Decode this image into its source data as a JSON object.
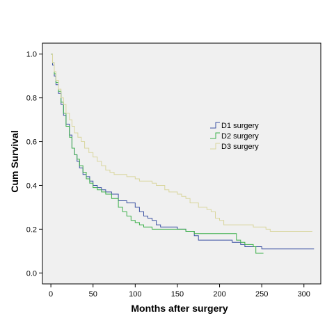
{
  "chart_data": {
    "type": "line",
    "xlabel": "Months after surgery",
    "ylabel": "Cum Survival",
    "xlim": [
      -10,
      320
    ],
    "ylim": [
      -0.05,
      1.05
    ],
    "x_ticks": [
      0,
      50,
      100,
      150,
      200,
      250,
      300
    ],
    "y_ticks": [
      0.0,
      0.2,
      0.4,
      0.6,
      0.8,
      1.0
    ],
    "x_tick_labels": [
      "0",
      "50",
      "100",
      "150",
      "200",
      "250",
      "300"
    ],
    "y_tick_labels": [
      "0.0",
      "0.2",
      "0.4",
      "0.6",
      "0.8",
      "1.0"
    ],
    "legend_position": "right",
    "series": [
      {
        "name": "D1 surgery",
        "color": "#3c52a3",
        "points": [
          [
            0,
            1.0
          ],
          [
            2,
            0.95
          ],
          [
            4,
            0.9
          ],
          [
            6,
            0.86
          ],
          [
            9,
            0.82
          ],
          [
            12,
            0.77
          ],
          [
            15,
            0.72
          ],
          [
            18,
            0.68
          ],
          [
            22,
            0.63
          ],
          [
            25,
            0.57
          ],
          [
            28,
            0.54
          ],
          [
            31,
            0.51
          ],
          [
            34,
            0.48
          ],
          [
            38,
            0.45
          ],
          [
            42,
            0.44
          ],
          [
            46,
            0.42
          ],
          [
            50,
            0.4
          ],
          [
            55,
            0.39
          ],
          [
            60,
            0.38
          ],
          [
            65,
            0.37
          ],
          [
            72,
            0.36
          ],
          [
            80,
            0.33
          ],
          [
            90,
            0.32
          ],
          [
            100,
            0.3
          ],
          [
            105,
            0.28
          ],
          [
            110,
            0.26
          ],
          [
            115,
            0.25
          ],
          [
            120,
            0.24
          ],
          [
            125,
            0.22
          ],
          [
            130,
            0.21
          ],
          [
            140,
            0.21
          ],
          [
            150,
            0.2
          ],
          [
            160,
            0.19
          ],
          [
            170,
            0.17
          ],
          [
            175,
            0.15
          ],
          [
            200,
            0.15
          ],
          [
            215,
            0.14
          ],
          [
            225,
            0.13
          ],
          [
            230,
            0.12
          ],
          [
            245,
            0.12
          ],
          [
            250,
            0.11
          ],
          [
            312,
            0.11
          ]
        ]
      },
      {
        "name": "D2 surgery",
        "color": "#3cb04a",
        "points": [
          [
            0,
            1.0
          ],
          [
            2,
            0.96
          ],
          [
            4,
            0.91
          ],
          [
            6,
            0.87
          ],
          [
            9,
            0.83
          ],
          [
            12,
            0.78
          ],
          [
            15,
            0.73
          ],
          [
            18,
            0.67
          ],
          [
            22,
            0.62
          ],
          [
            25,
            0.57
          ],
          [
            28,
            0.54
          ],
          [
            31,
            0.52
          ],
          [
            34,
            0.49
          ],
          [
            38,
            0.46
          ],
          [
            42,
            0.43
          ],
          [
            46,
            0.41
          ],
          [
            50,
            0.39
          ],
          [
            55,
            0.38
          ],
          [
            60,
            0.37
          ],
          [
            65,
            0.36
          ],
          [
            72,
            0.34
          ],
          [
            80,
            0.3
          ],
          [
            85,
            0.28
          ],
          [
            90,
            0.26
          ],
          [
            95,
            0.24
          ],
          [
            100,
            0.23
          ],
          [
            105,
            0.22
          ],
          [
            110,
            0.21
          ],
          [
            120,
            0.2
          ],
          [
            140,
            0.2
          ],
          [
            150,
            0.2
          ],
          [
            160,
            0.19
          ],
          [
            170,
            0.18
          ],
          [
            175,
            0.18
          ],
          [
            180,
            0.18
          ],
          [
            190,
            0.18
          ],
          [
            200,
            0.18
          ],
          [
            210,
            0.18
          ],
          [
            220,
            0.15
          ],
          [
            225,
            0.14
          ],
          [
            230,
            0.13
          ],
          [
            240,
            0.12
          ],
          [
            243,
            0.09
          ],
          [
            252,
            0.09
          ]
        ]
      },
      {
        "name": "D3 surgery",
        "color": "#d9d69e",
        "points": [
          [
            0,
            1.0
          ],
          [
            2,
            0.96
          ],
          [
            4,
            0.92
          ],
          [
            6,
            0.88
          ],
          [
            9,
            0.84
          ],
          [
            12,
            0.8
          ],
          [
            15,
            0.77
          ],
          [
            18,
            0.73
          ],
          [
            22,
            0.7
          ],
          [
            25,
            0.67
          ],
          [
            28,
            0.64
          ],
          [
            32,
            0.62
          ],
          [
            36,
            0.6
          ],
          [
            40,
            0.57
          ],
          [
            45,
            0.55
          ],
          [
            50,
            0.53
          ],
          [
            55,
            0.51
          ],
          [
            60,
            0.49
          ],
          [
            65,
            0.47
          ],
          [
            70,
            0.46
          ],
          [
            75,
            0.45
          ],
          [
            80,
            0.45
          ],
          [
            90,
            0.44
          ],
          [
            100,
            0.43
          ],
          [
            105,
            0.42
          ],
          [
            110,
            0.42
          ],
          [
            120,
            0.41
          ],
          [
            125,
            0.4
          ],
          [
            135,
            0.38
          ],
          [
            140,
            0.37
          ],
          [
            150,
            0.36
          ],
          [
            155,
            0.35
          ],
          [
            160,
            0.34
          ],
          [
            165,
            0.32
          ],
          [
            170,
            0.32
          ],
          [
            175,
            0.3
          ],
          [
            185,
            0.29
          ],
          [
            190,
            0.28
          ],
          [
            195,
            0.25
          ],
          [
            200,
            0.24
          ],
          [
            205,
            0.22
          ],
          [
            210,
            0.22
          ],
          [
            220,
            0.22
          ],
          [
            235,
            0.22
          ],
          [
            240,
            0.21
          ],
          [
            250,
            0.21
          ],
          [
            255,
            0.2
          ],
          [
            260,
            0.19
          ],
          [
            310,
            0.19
          ]
        ]
      }
    ]
  }
}
